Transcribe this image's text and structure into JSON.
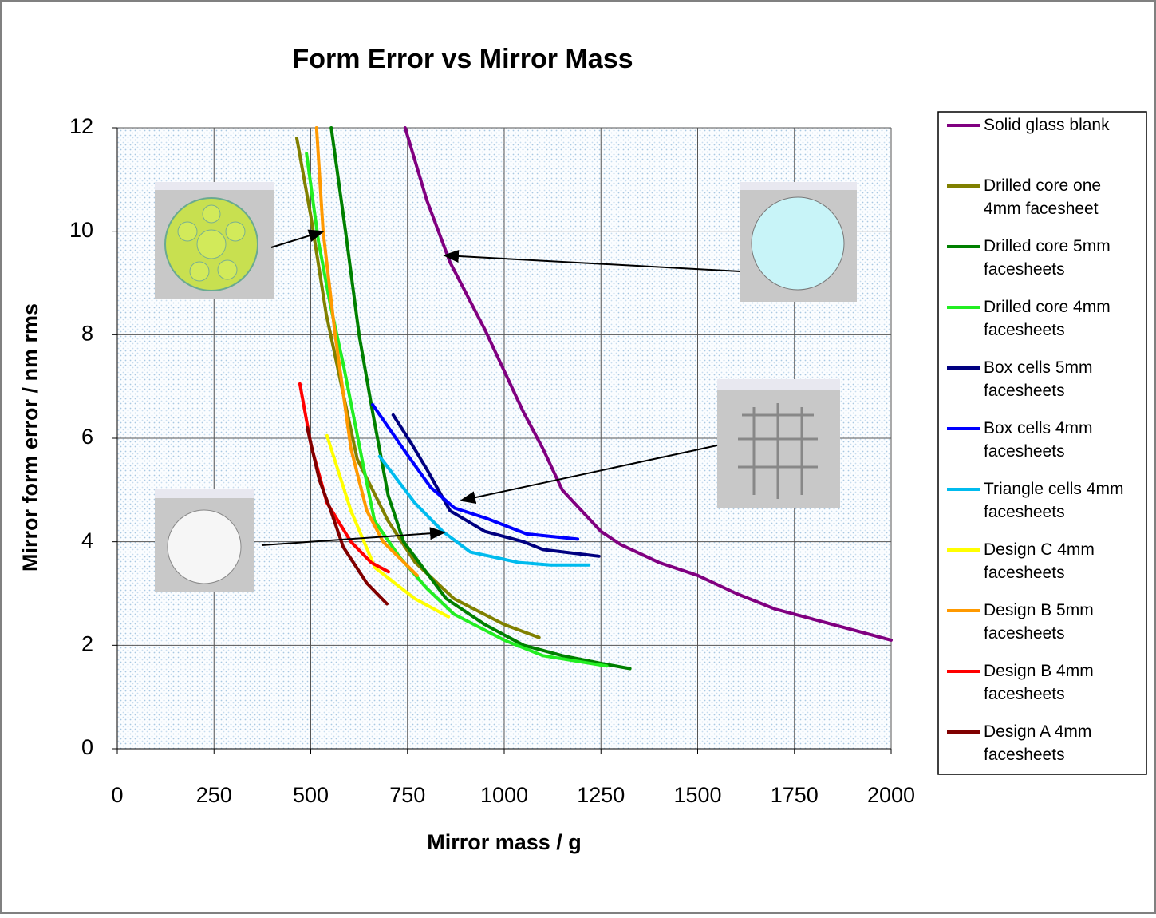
{
  "chart_data": {
    "type": "line",
    "title": "Form Error vs Mirror Mass",
    "x_label": "Mirror mass / g",
    "y_label": "Mirror form error / nm rms",
    "xlim": [
      0,
      2000
    ],
    "xticks": [
      0,
      250,
      500,
      750,
      1000,
      1250,
      1500,
      1750,
      2000
    ],
    "ylim": [
      0,
      12
    ],
    "yticks": [
      0,
      2,
      4,
      6,
      8,
      10,
      12
    ],
    "grid": true,
    "legend": "right",
    "series": [
      {
        "name": "Solid glass blank",
        "color": "#800080",
        "x": [
          744,
          800,
          860,
          950,
          1000,
          1050,
          1100,
          1150,
          1200,
          1250,
          1300,
          1400,
          1500,
          1600,
          1700,
          1800,
          1900,
          2000
        ],
        "values": [
          12,
          10.6,
          9.4,
          8.1,
          7.3,
          6.5,
          5.8,
          5.0,
          4.6,
          4.2,
          3.95,
          3.6,
          3.35,
          3.0,
          2.7,
          2.5,
          2.3,
          2.1
        ]
      },
      {
        "name": "Drilled core  one 4mm facesheet",
        "color": "#808000",
        "x": [
          464,
          500,
          540,
          580,
          620,
          660,
          700,
          770,
          870,
          1000,
          1090
        ],
        "values": [
          11.8,
          10.3,
          8.4,
          7.0,
          5.6,
          5.0,
          4.4,
          3.6,
          2.9,
          2.4,
          2.15
        ]
      },
      {
        "name": "Drilled core 5mm facesheets",
        "color": "#008000",
        "x": [
          553,
          590,
          625,
          660,
          700,
          740,
          800,
          850,
          950,
          1050,
          1150,
          1250,
          1325
        ],
        "values": [
          12,
          10,
          8,
          6.5,
          4.9,
          4.0,
          3.4,
          2.9,
          2.4,
          2.0,
          1.8,
          1.65,
          1.55
        ]
      },
      {
        "name": "Drilled core 4mm facesheets",
        "color": "#22ee22",
        "x": [
          489,
          520,
          550,
          585,
          635,
          665,
          730,
          800,
          870,
          1000,
          1100,
          1265
        ],
        "values": [
          11.5,
          9.8,
          8.6,
          7.4,
          5.5,
          4.4,
          3.7,
          3.1,
          2.6,
          2.1,
          1.8,
          1.6
        ]
      },
      {
        "name": "Box cells 5mm facesheets",
        "color": "#000080",
        "x": [
          713,
          760,
          800,
          860,
          950,
          1050,
          1100,
          1245
        ],
        "values": [
          6.45,
          5.9,
          5.4,
          4.6,
          4.2,
          4.0,
          3.85,
          3.72
        ]
      },
      {
        "name": "Box cells 4mm facesheets",
        "color": "#0000ff",
        "x": [
          660,
          748,
          810,
          872,
          955,
          1058,
          1190
        ],
        "values": [
          6.65,
          5.7,
          5.05,
          4.65,
          4.45,
          4.15,
          4.05
        ]
      },
      {
        "name": "Triangle cells 4mm facesheets",
        "color": "#00bbee",
        "x": [
          678,
          769,
          841,
          913,
          1037,
          1120,
          1219
        ],
        "values": [
          5.65,
          4.75,
          4.2,
          3.8,
          3.6,
          3.55,
          3.55
        ]
      },
      {
        "name": "Design C 4mm facesheets",
        "color": "#ffff00",
        "x": [
          542,
          604,
          666,
          769,
          856
        ],
        "values": [
          6.05,
          4.6,
          3.5,
          2.9,
          2.55
        ]
      },
      {
        "name": "Design B 5mm facesheets",
        "color": "#ff9900",
        "x": [
          515,
          532,
          563,
          604,
          645,
          687,
          775
        ],
        "values": [
          12,
          10,
          8,
          5.8,
          4.6,
          4.0,
          3.35
        ]
      },
      {
        "name": "Design B 4mm facesheets",
        "color": "#ff0000",
        "x": [
          472,
          501,
          542,
          604,
          656,
          701
        ],
        "values": [
          7.05,
          5.85,
          4.75,
          4.0,
          3.6,
          3.42
        ]
      },
      {
        "name": "Design A 4mm facesheets",
        "color": "#800000",
        "x": [
          491,
          522,
          552,
          584,
          645,
          697
        ],
        "values": [
          6.2,
          5.2,
          4.6,
          3.9,
          3.2,
          2.8
        ]
      }
    ]
  }
}
